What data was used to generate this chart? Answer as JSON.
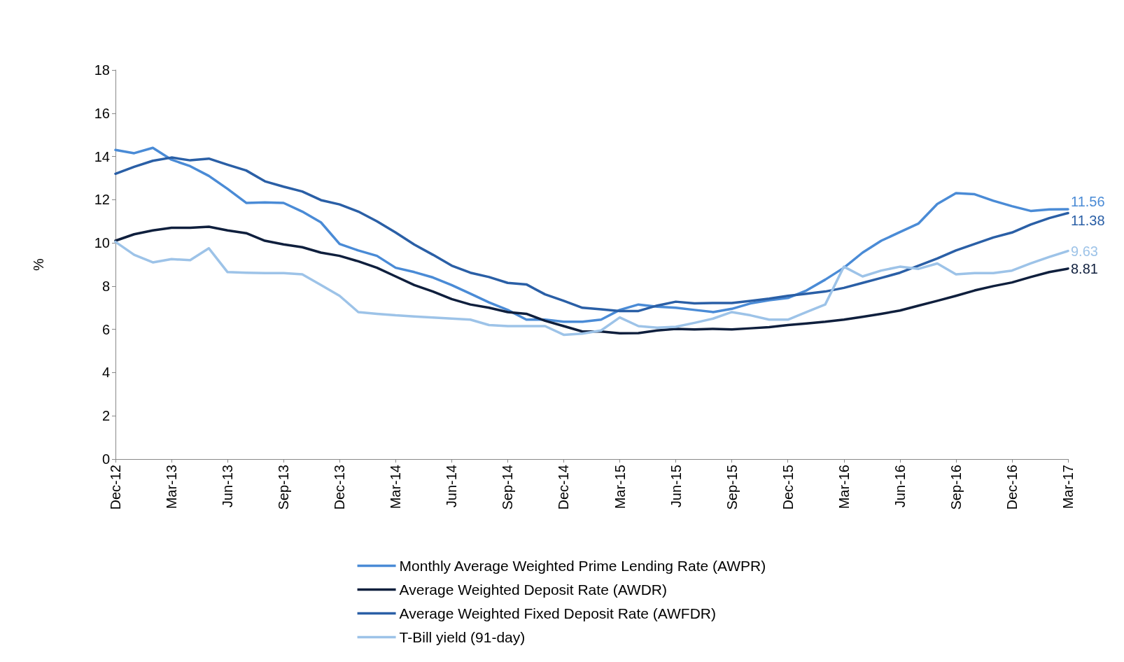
{
  "chart_data": {
    "type": "line",
    "ylabel": "%",
    "categories": [
      "Dec-12",
      null,
      null,
      "Mar-13",
      null,
      null,
      "Jun-13",
      null,
      null,
      "Sep-13",
      null,
      null,
      "Dec-13",
      null,
      null,
      "Mar-14",
      null,
      null,
      "Jun-14",
      null,
      null,
      "Sep-14",
      null,
      null,
      "Dec-14",
      null,
      null,
      "Mar-15",
      null,
      null,
      "Jun-15",
      null,
      null,
      "Sep-15",
      null,
      null,
      "Dec-15",
      null,
      null,
      "Mar-16",
      null,
      null,
      "Jun-16",
      null,
      null,
      "Sep-16",
      null,
      null,
      "Dec-16",
      null,
      null,
      "Mar-17"
    ],
    "ylim": [
      0,
      18
    ],
    "yticks": [
      0,
      2,
      4,
      6,
      8,
      10,
      12,
      14,
      16,
      18
    ],
    "grid": false,
    "legend": "bottom",
    "marker": "none",
    "line_style": "solid",
    "series": [
      {
        "name": "Monthly Average Weighted Prime Lending Rate (AWPR)",
        "color": "#4a8bd6",
        "values": [
          14.3,
          14.15,
          14.4,
          13.85,
          13.55,
          13.1,
          12.5,
          11.85,
          11.87,
          11.85,
          11.45,
          10.95,
          9.95,
          9.65,
          9.4,
          8.85,
          8.65,
          8.4,
          8.05,
          7.65,
          7.25,
          6.9,
          6.45,
          6.45,
          6.35,
          6.35,
          6.45,
          6.9,
          7.15,
          7.05,
          7.0,
          6.9,
          6.8,
          6.95,
          7.2,
          7.35,
          7.45,
          7.8,
          8.3,
          8.85,
          9.55,
          10.1,
          10.5,
          10.9,
          11.8,
          12.3,
          12.25,
          11.95,
          11.7,
          11.48,
          11.55,
          11.56
        ],
        "value_labels": [
          null,
          null,
          null,
          null,
          null,
          null,
          null,
          null,
          null,
          null,
          null,
          null,
          null,
          null,
          null,
          null,
          null,
          null,
          null,
          null,
          null,
          null,
          null,
          null,
          null,
          null,
          null,
          null,
          null,
          null,
          null,
          null,
          null,
          null,
          null,
          null,
          null,
          null,
          null,
          null,
          null,
          null,
          null,
          null,
          null,
          null,
          null,
          null,
          null,
          null,
          null,
          "11.56"
        ]
      },
      {
        "name": "Average Weighted Deposit Rate (AWDR)",
        "color": "#0f1f3d",
        "values": [
          10.1,
          10.4,
          10.58,
          10.7,
          10.7,
          10.75,
          10.58,
          10.45,
          10.1,
          9.93,
          9.8,
          9.55,
          9.4,
          9.15,
          8.85,
          8.45,
          8.05,
          7.75,
          7.4,
          7.15,
          7.0,
          6.8,
          6.72,
          6.4,
          6.15,
          5.9,
          5.9,
          5.82,
          5.83,
          5.95,
          6.02,
          6.0,
          6.02,
          6.0,
          6.05,
          6.1,
          6.2,
          6.27,
          6.35,
          6.45,
          6.58,
          6.72,
          6.87,
          7.1,
          7.32,
          7.55,
          7.8,
          8.0,
          8.17,
          8.42,
          8.65,
          8.81
        ],
        "value_labels": [
          null,
          null,
          null,
          null,
          null,
          null,
          null,
          null,
          null,
          null,
          null,
          null,
          null,
          null,
          null,
          null,
          null,
          null,
          null,
          null,
          null,
          null,
          null,
          null,
          null,
          null,
          null,
          null,
          null,
          null,
          null,
          null,
          null,
          null,
          null,
          null,
          null,
          null,
          null,
          null,
          null,
          null,
          null,
          null,
          null,
          null,
          null,
          null,
          null,
          null,
          null,
          "8.81"
        ]
      },
      {
        "name": "Average Weighted Fixed Deposit Rate (AWFDR)",
        "color": "#2a5fa6",
        "values": [
          13.2,
          13.52,
          13.8,
          13.95,
          13.82,
          13.9,
          13.62,
          13.35,
          12.85,
          12.6,
          12.38,
          11.98,
          11.78,
          11.45,
          11.0,
          10.48,
          9.92,
          9.45,
          8.95,
          8.62,
          8.42,
          8.15,
          8.08,
          7.62,
          7.32,
          7.0,
          6.93,
          6.85,
          6.85,
          7.1,
          7.28,
          7.2,
          7.22,
          7.22,
          7.32,
          7.42,
          7.55,
          7.65,
          7.75,
          7.92,
          8.15,
          8.38,
          8.62,
          8.95,
          9.28,
          9.65,
          9.95,
          10.25,
          10.48,
          10.85,
          11.15,
          11.38
        ],
        "value_labels": [
          null,
          null,
          null,
          null,
          null,
          null,
          null,
          null,
          null,
          null,
          null,
          null,
          null,
          null,
          null,
          null,
          null,
          null,
          null,
          null,
          null,
          null,
          null,
          null,
          null,
          null,
          null,
          null,
          null,
          null,
          null,
          null,
          null,
          null,
          null,
          null,
          null,
          null,
          null,
          null,
          null,
          null,
          null,
          null,
          null,
          null,
          null,
          null,
          null,
          null,
          null,
          "11.38"
        ]
      },
      {
        "name": "T-Bill yield (91-day)",
        "color": "#9dc3e8",
        "values": [
          10.05,
          9.45,
          9.1,
          9.25,
          9.2,
          9.75,
          8.65,
          8.62,
          8.6,
          8.6,
          8.55,
          8.05,
          7.55,
          6.8,
          6.72,
          6.65,
          6.6,
          6.55,
          6.5,
          6.45,
          6.2,
          6.15,
          6.15,
          6.15,
          5.75,
          5.8,
          5.95,
          6.55,
          6.15,
          6.08,
          6.12,
          6.3,
          6.5,
          6.8,
          6.65,
          6.45,
          6.45,
          6.8,
          7.15,
          8.9,
          8.45,
          8.72,
          8.9,
          8.8,
          9.05,
          8.55,
          8.6,
          8.6,
          8.72,
          9.05,
          9.35,
          9.63
        ],
        "value_labels": [
          null,
          null,
          null,
          null,
          null,
          null,
          null,
          null,
          null,
          null,
          null,
          null,
          null,
          null,
          null,
          null,
          null,
          null,
          null,
          null,
          null,
          null,
          null,
          null,
          null,
          null,
          null,
          null,
          null,
          null,
          null,
          null,
          null,
          null,
          null,
          null,
          null,
          null,
          null,
          null,
          null,
          null,
          null,
          null,
          null,
          null,
          null,
          null,
          null,
          null,
          null,
          "9.63"
        ]
      }
    ]
  }
}
